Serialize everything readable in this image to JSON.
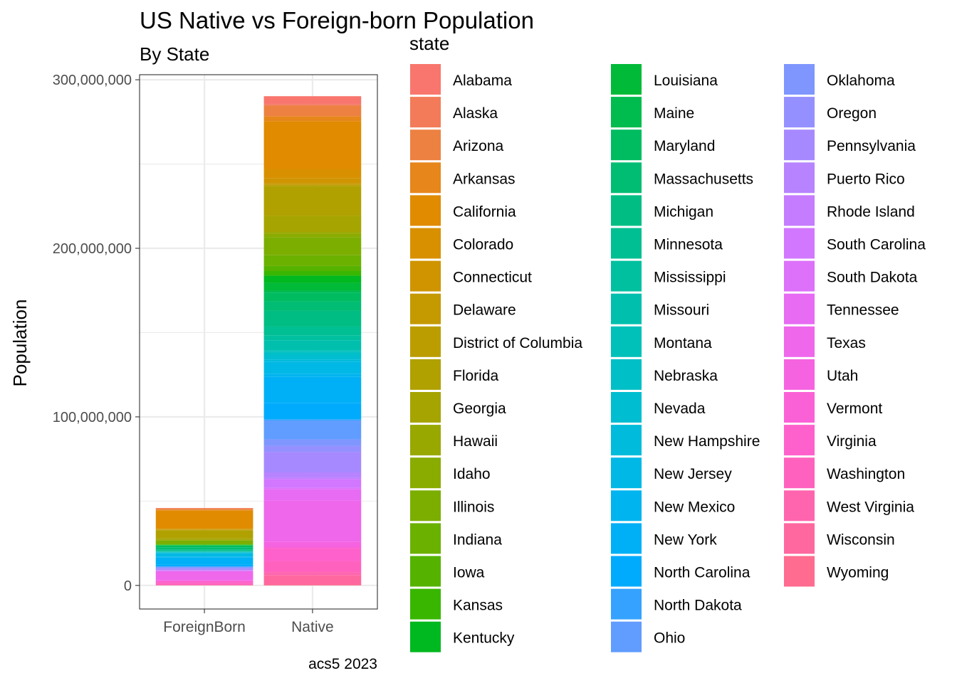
{
  "chart_data": {
    "type": "bar",
    "stacked": true,
    "title": "US Native vs Foreign-born Population",
    "subtitle": "By State",
    "caption": "acs5 2023",
    "ylabel": "Population",
    "xlabel": "",
    "ylim": [
      -14000000,
      303000000
    ],
    "yticks": [
      0,
      100000000,
      200000000,
      300000000
    ],
    "ytick_labels": [
      "0",
      "100,000,000",
      "200,000,000",
      "300,000,000"
    ],
    "grid": true,
    "categories": [
      "ForeignBorn",
      "Native"
    ],
    "legend": {
      "title": "state",
      "placement": "right",
      "columns": 3
    },
    "series": [
      {
        "name": "Alabama",
        "color": "#F8766D",
        "values": [
          180000,
          4900000
        ]
      },
      {
        "name": "Alaska",
        "color": "#F37B59",
        "values": [
          60000,
          680000
        ]
      },
      {
        "name": "Arizona",
        "color": "#ED8141",
        "values": [
          960000,
          6300000
        ]
      },
      {
        "name": "Arkansas",
        "color": "#E7861B",
        "values": [
          150000,
          2900000
        ]
      },
      {
        "name": "California",
        "color": "#E08B00",
        "values": [
          10500000,
          28600000
        ]
      },
      {
        "name": "Colorado",
        "color": "#D89000",
        "values": [
          560000,
          5200000
        ]
      },
      {
        "name": "Connecticut",
        "color": "#CF9400",
        "values": [
          550000,
          3100000
        ]
      },
      {
        "name": "Delaware",
        "color": "#C59900",
        "values": [
          100000,
          900000
        ]
      },
      {
        "name": "District of Columbia",
        "color": "#BB9D00",
        "values": [
          95000,
          580000
        ]
      },
      {
        "name": "Florida",
        "color": "#B0A100",
        "values": [
          4700000,
          17700000
        ]
      },
      {
        "name": "Georgia",
        "color": "#A5A400",
        "values": [
          1100000,
          9700000
        ]
      },
      {
        "name": "Hawaii",
        "color": "#98A800",
        "values": [
          260000,
          1200000
        ]
      },
      {
        "name": "Idaho",
        "color": "#8AAB00",
        "values": [
          110000,
          1800000
        ]
      },
      {
        "name": "Illinois",
        "color": "#7CAE00",
        "values": [
          1800000,
          10800000
        ]
      },
      {
        "name": "Indiana",
        "color": "#6BB100",
        "values": [
          400000,
          6400000
        ]
      },
      {
        "name": "Iowa",
        "color": "#55B300",
        "values": [
          180000,
          3000000
        ]
      },
      {
        "name": "Kansas",
        "color": "#39B600",
        "values": [
          210000,
          2700000
        ]
      },
      {
        "name": "Kentucky",
        "color": "#00B81F",
        "values": [
          190000,
          4300000
        ]
      },
      {
        "name": "Louisiana",
        "color": "#00BA38",
        "values": [
          200000,
          4400000
        ]
      },
      {
        "name": "Maine",
        "color": "#00BB4E",
        "values": [
          50000,
          1300000
        ]
      },
      {
        "name": "Maryland",
        "color": "#00BC61",
        "values": [
          930000,
          5200000
        ]
      },
      {
        "name": "Massachusetts",
        "color": "#00BD73",
        "values": [
          1250000,
          5700000
        ]
      },
      {
        "name": "Michigan",
        "color": "#00BE83",
        "values": [
          720000,
          9300000
        ]
      },
      {
        "name": "Minnesota",
        "color": "#00BF92",
        "values": [
          490000,
          5200000
        ]
      },
      {
        "name": "Mississippi",
        "color": "#00C0A0",
        "values": [
          70000,
          2900000
        ]
      },
      {
        "name": "Missouri",
        "color": "#00C0AD",
        "values": [
          270000,
          5900000
        ]
      },
      {
        "name": "Montana",
        "color": "#00C0BA",
        "values": [
          25000,
          1100000
        ]
      },
      {
        "name": "Nebraska",
        "color": "#00BFC6",
        "values": [
          140000,
          1800000
        ]
      },
      {
        "name": "Nevada",
        "color": "#00BDD1",
        "values": [
          600000,
          2600000
        ]
      },
      {
        "name": "New Hampshire",
        "color": "#00BBDB",
        "values": [
          85000,
          1300000
        ]
      },
      {
        "name": "New Jersey",
        "color": "#00B8E5",
        "values": [
          2100000,
          7200000
        ]
      },
      {
        "name": "New Mexico",
        "color": "#00B4EF",
        "values": [
          200000,
          1900000
        ]
      },
      {
        "name": "New York",
        "color": "#00B0F6",
        "values": [
          4500000,
          15400000
        ]
      },
      {
        "name": "North Carolina",
        "color": "#00ABFD",
        "values": [
          900000,
          9700000
        ]
      },
      {
        "name": "North Dakota",
        "color": "#35A2FF",
        "values": [
          30000,
          750000
        ]
      },
      {
        "name": "Ohio",
        "color": "#619CFF",
        "values": [
          560000,
          11200000
        ]
      },
      {
        "name": "Oklahoma",
        "color": "#7F96FF",
        "values": [
          260000,
          3800000
        ]
      },
      {
        "name": "Oregon",
        "color": "#9590FF",
        "values": [
          420000,
          3800000
        ]
      },
      {
        "name": "Pennsylvania",
        "color": "#A789FF",
        "values": [
          960000,
          12000000
        ]
      },
      {
        "name": "Puerto Rico",
        "color": "#B783FF",
        "values": [
          90000,
          3200000
        ]
      },
      {
        "name": "Rhode Island",
        "color": "#C57CFF",
        "values": [
          150000,
          940000
        ]
      },
      {
        "name": "South Carolina",
        "color": "#D277FF",
        "values": [
          280000,
          5000000
        ]
      },
      {
        "name": "South Dakota",
        "color": "#DD71FA",
        "values": [
          30000,
          880000
        ]
      },
      {
        "name": "Tennessee",
        "color": "#E76BF3",
        "values": [
          370000,
          6600000
        ]
      },
      {
        "name": "Texas",
        "color": "#EF67EB",
        "values": [
          5200000,
          24600000
        ]
      },
      {
        "name": "Utah",
        "color": "#F663E1",
        "values": [
          280000,
          3100000
        ]
      },
      {
        "name": "Vermont",
        "color": "#FB61D7",
        "values": [
          30000,
          610000
        ]
      },
      {
        "name": "Virginia",
        "color": "#FE61CC",
        "values": [
          1100000,
          7600000
        ]
      },
      {
        "name": "Washington",
        "color": "#FF62BE",
        "values": [
          1200000,
          6600000
        ]
      },
      {
        "name": "West Virginia",
        "color": "#FF65AF",
        "values": [
          30000,
          1750000
        ]
      },
      {
        "name": "Wisconsin",
        "color": "#FF689F",
        "values": [
          300000,
          5600000
        ]
      },
      {
        "name": "Wyoming",
        "color": "#FF6C90",
        "values": [
          20000,
          560000
        ]
      }
    ]
  }
}
